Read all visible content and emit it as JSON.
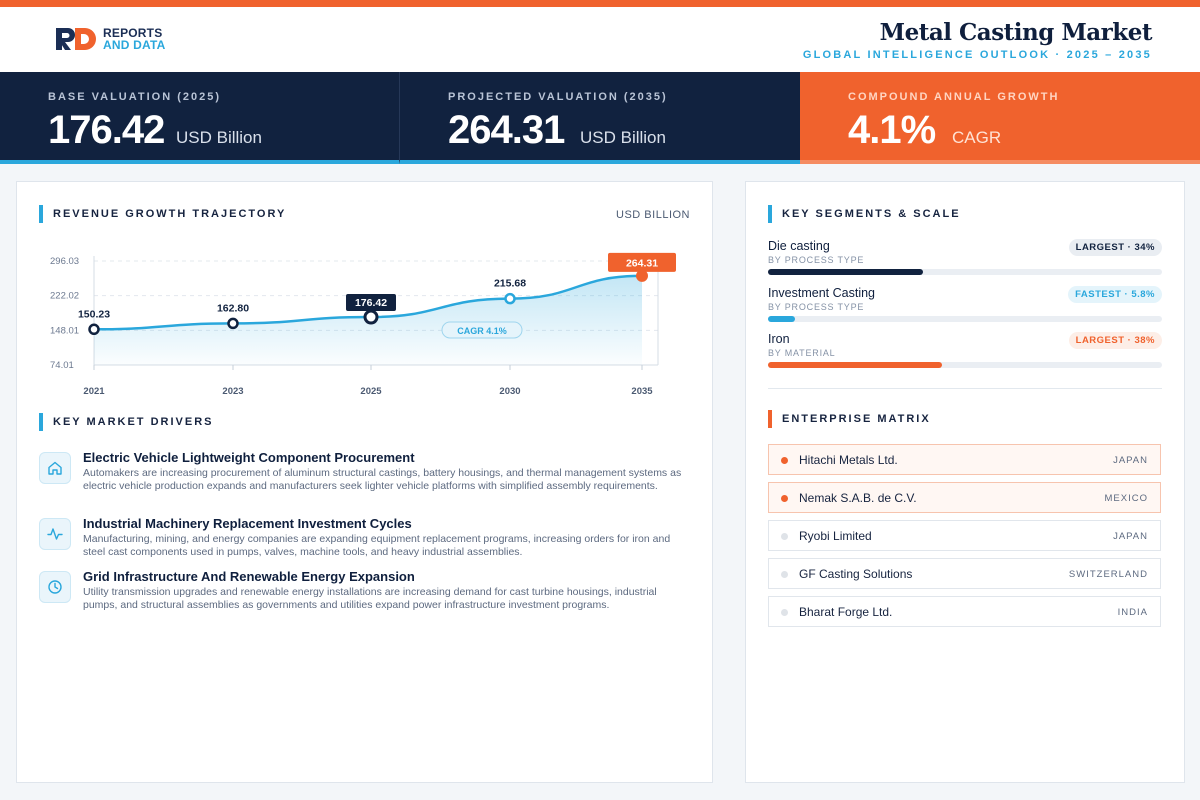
{
  "header": {
    "logo_line1": "REPORTS",
    "logo_line2": "AND DATA",
    "title": "Metal Casting Market",
    "subtitle": "GLOBAL INTELLIGENCE OUTLOOK  ·  2025 – 2035"
  },
  "kpis": [
    {
      "label": "BASE VALUATION (2025)",
      "value": "176.42",
      "unit": "USD Billion"
    },
    {
      "label": "PROJECTED VALUATION (2035)",
      "value": "264.31",
      "unit": "USD Billion"
    },
    {
      "label": "COMPOUND ANNUAL GROWTH",
      "value": "4.1%",
      "unit": "CAGR"
    }
  ],
  "colors": {
    "navy": "#11223f",
    "accent_blue": "#2aa7dc",
    "accent_orange": "#f0622d"
  },
  "revenue": {
    "title": "REVENUE GROWTH TRAJECTORY",
    "unit": "USD BILLION",
    "cagr_label": "CAGR 4.1%"
  },
  "chart_data": {
    "type": "area",
    "x": [
      "2021",
      "2023",
      "2025",
      "2030",
      "2035"
    ],
    "values": [
      150.23,
      162.8,
      176.42,
      215.68,
      264.31
    ],
    "data_labels": [
      "150.23",
      "162.80",
      "176.42",
      "215.68",
      "264.31"
    ],
    "y_ticks": [
      "296.03",
      "222.02",
      "148.01",
      "74.01"
    ],
    "y_tick_values": [
      296.03,
      222.02,
      148.01,
      74.01
    ],
    "ylim": [
      74.01,
      296.03
    ],
    "highlight": {
      "base_index": 2,
      "projected_index": 4
    },
    "grid": true
  },
  "drivers": {
    "title": "KEY MARKET DRIVERS",
    "items": [
      {
        "icon": "home-icon",
        "title": "Electric Vehicle Lightweight Component Procurement",
        "text": "Automakers are increasing procurement of aluminum structural castings, battery housings, and thermal management systems as electric vehicle production expands and manufacturers seek lighter vehicle platforms with simplified assembly requirements."
      },
      {
        "icon": "activity-icon",
        "title": "Industrial Machinery Replacement Investment Cycles",
        "text": "Manufacturing, mining, and energy companies are expanding equipment replacement programs, increasing orders for iron and steel cast components used in pumps, valves, machine tools, and heavy industrial assemblies."
      },
      {
        "icon": "clock-icon",
        "title": "Grid Infrastructure And Renewable Energy Expansion",
        "text": "Utility transmission upgrades and renewable energy installations are increasing demand for cast turbine housings, industrial pumps, and structural assemblies as governments and utilities expand power infrastructure investment programs."
      }
    ]
  },
  "segments": {
    "title": "KEY SEGMENTS & SCALE",
    "items": [
      {
        "name": "Die casting",
        "sub": "BY PROCESS TYPE",
        "badge": "LARGEST · 34%",
        "share": 0.34,
        "color": "#11223f",
        "badge_bg": "#e9edf2",
        "badge_fg": "#11223f"
      },
      {
        "name": "Investment Casting",
        "sub": "BY PROCESS TYPE",
        "badge": "FASTEST · 5.8%",
        "share": 0.058,
        "color": "#2aa7dc",
        "badge_bg": "#e4f4fb",
        "badge_fg": "#2aa7dc"
      },
      {
        "name": "Iron",
        "sub": "BY MATERIAL",
        "badge": "LARGEST · 38%",
        "share": 0.38,
        "color": "#f0622d",
        "badge_bg": "#fdeee7",
        "badge_fg": "#f0622d"
      }
    ]
  },
  "enterprise": {
    "title": "ENTERPRISE MATRIX",
    "companies": [
      {
        "name": "Hitachi Metals Ltd.",
        "country": "JAPAN",
        "highlight": true
      },
      {
        "name": "Nemak S.A.B. de C.V.",
        "country": "MEXICO",
        "highlight": true
      },
      {
        "name": "Ryobi Limited",
        "country": "JAPAN",
        "highlight": false
      },
      {
        "name": "GF Casting Solutions",
        "country": "SWITZERLAND",
        "highlight": false
      },
      {
        "name": "Bharat Forge Ltd.",
        "country": "INDIA",
        "highlight": false
      }
    ]
  }
}
